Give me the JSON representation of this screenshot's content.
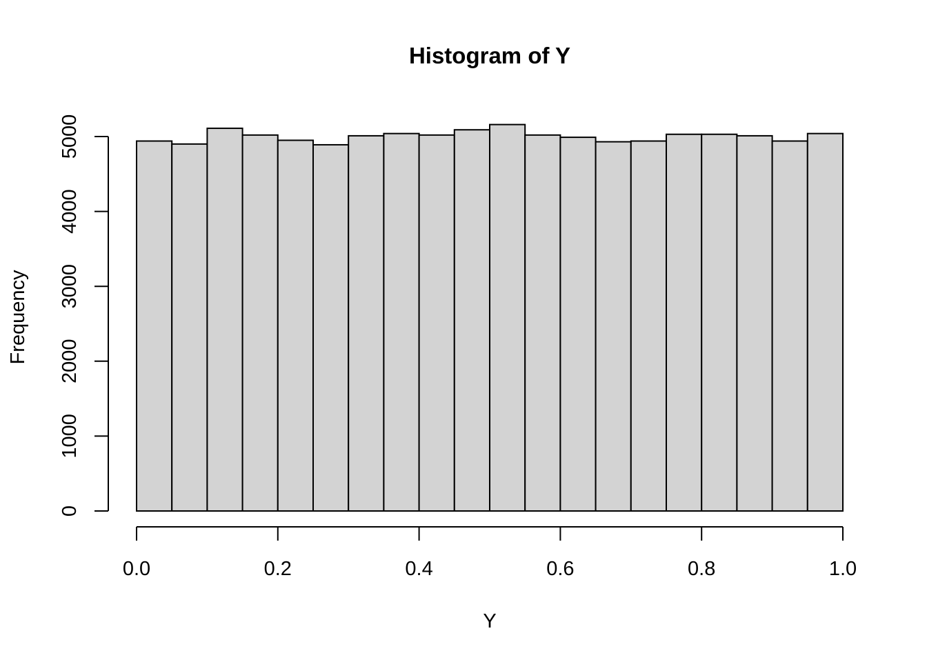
{
  "chart_data": {
    "type": "bar",
    "title": "Histogram of Y",
    "xlabel": "Y",
    "ylabel": "Frequency",
    "xlim": [
      0,
      1
    ],
    "ylim": [
      0,
      5200
    ],
    "x_ticks": [
      "0.0",
      "0.2",
      "0.4",
      "0.6",
      "0.8",
      "1.0"
    ],
    "y_ticks": [
      "0",
      "1000",
      "2000",
      "3000",
      "4000",
      "5000"
    ],
    "bins": [
      [
        0.0,
        0.05
      ],
      [
        0.05,
        0.1
      ],
      [
        0.1,
        0.15
      ],
      [
        0.15,
        0.2
      ],
      [
        0.2,
        0.25
      ],
      [
        0.25,
        0.3
      ],
      [
        0.3,
        0.35
      ],
      [
        0.35,
        0.4
      ],
      [
        0.4,
        0.45
      ],
      [
        0.45,
        0.5
      ],
      [
        0.5,
        0.55
      ],
      [
        0.55,
        0.6
      ],
      [
        0.6,
        0.65
      ],
      [
        0.65,
        0.7
      ],
      [
        0.7,
        0.75
      ],
      [
        0.75,
        0.8
      ],
      [
        0.8,
        0.85
      ],
      [
        0.85,
        0.9
      ],
      [
        0.9,
        0.95
      ],
      [
        0.95,
        1.0
      ]
    ],
    "values": [
      4940,
      4900,
      5110,
      5020,
      4950,
      4890,
      5010,
      5040,
      5020,
      5090,
      5160,
      5020,
      4990,
      4930,
      4940,
      5030,
      5030,
      5010,
      4940,
      5040
    ],
    "grid": false,
    "bar_fill": "#d3d3d3",
    "bar_stroke": "#000000"
  }
}
